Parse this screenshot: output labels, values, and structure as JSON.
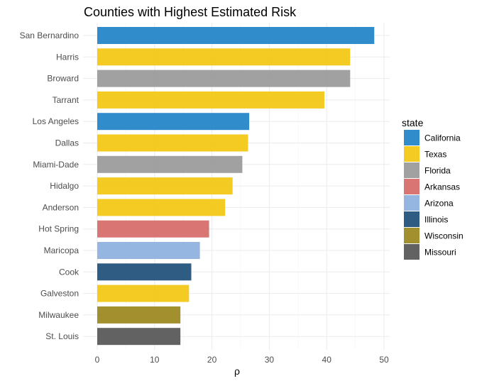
{
  "chart_data": {
    "type": "bar",
    "orientation": "horizontal",
    "title": "Counties with Highest Estimated Risk",
    "xlabel": "ρ",
    "ylabel": "",
    "xlim": [
      0,
      50
    ],
    "xticks": [
      0,
      10,
      20,
      30,
      40,
      50
    ],
    "grid": true,
    "categories": [
      "San Bernardino",
      "Harris",
      "Broward",
      "Tarrant",
      "Los Angeles",
      "Dallas",
      "Miami-Dade",
      "Hidalgo",
      "Anderson",
      "Hot Spring",
      "Maricopa",
      "Cook",
      "Galveston",
      "Milwaukee",
      "St. Louis"
    ],
    "values": [
      48.3,
      44.1,
      44.1,
      39.6,
      26.5,
      26.3,
      25.3,
      23.6,
      22.3,
      19.5,
      17.9,
      16.4,
      16.0,
      14.5,
      14.5
    ],
    "state": [
      "California",
      "Texas",
      "Florida",
      "Texas",
      "California",
      "Texas",
      "Florida",
      "Texas",
      "Texas",
      "Arkansas",
      "Arizona",
      "Illinois",
      "Texas",
      "Wisconsin",
      "Missouri"
    ],
    "legend": {
      "title": "state",
      "position": "right",
      "entries": [
        {
          "label": "California",
          "color": "#1f82c8"
        },
        {
          "label": "Texas",
          "color": "#f2c70f"
        },
        {
          "label": "Florida",
          "color": "#999999"
        },
        {
          "label": "Arkansas",
          "color": "#d66a67"
        },
        {
          "label": "Arizona",
          "color": "#8db0e0"
        },
        {
          "label": "Illinois",
          "color": "#1c4e78"
        },
        {
          "label": "Wisconsin",
          "color": "#9a851c"
        },
        {
          "label": "Missouri",
          "color": "#555555"
        }
      ]
    }
  }
}
